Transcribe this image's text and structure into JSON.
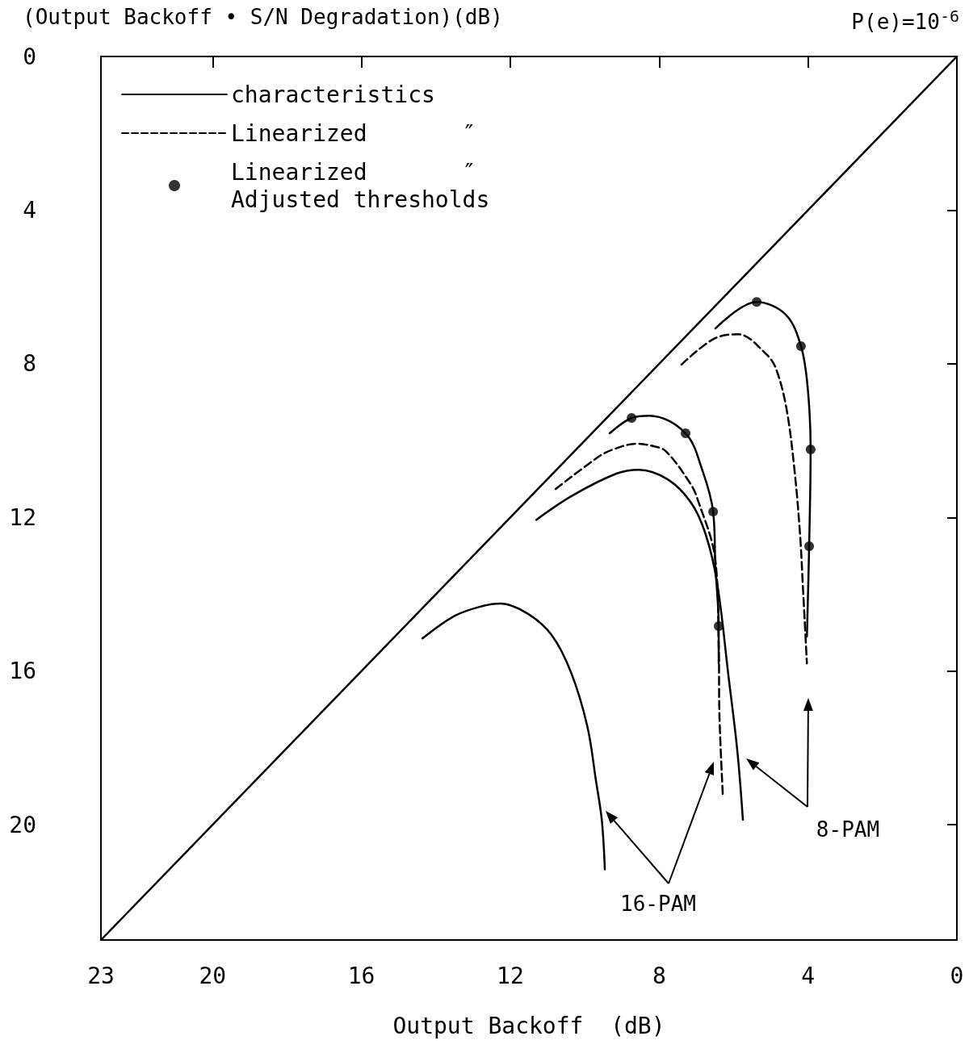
{
  "chart_data": {
    "type": "line",
    "ylabel": "(Output Backoff • S/N Degradation)(dB)",
    "xlabel": "Output Backoff  (dB)",
    "xlim": [
      23,
      0
    ],
    "xticks": [
      23,
      20,
      16,
      12,
      8,
      4,
      0
    ],
    "ylim": [
      23,
      0
    ],
    "yticks": [
      0,
      4,
      8,
      12,
      16,
      20
    ],
    "legend": "top left",
    "series": [
      {
        "x": [
          23,
          0
        ],
        "values": [
          23,
          0
        ],
        "color": "#000000",
        "line_style": "solid"
      },
      {
        "name": "characteristics",
        "color": "#000000",
        "line_style": "solid",
        "x": [
          14.36,
          13.49,
          12.76,
          12.26,
          11.54,
          10.89,
          10.37,
          9.93,
          9.7,
          9.54,
          9.46
        ],
        "values": [
          15.15,
          14.56,
          14.31,
          14.24,
          14.5,
          15.06,
          16.03,
          17.44,
          18.84,
          19.89,
          21.16
        ]
      },
      {
        "color": "#000000",
        "line_style": "solid",
        "x": [
          11.3,
          10.33,
          9.15,
          8.55,
          7.77,
          7.14,
          6.75,
          6.44,
          6.14,
          5.9,
          5.75
        ],
        "values": [
          12.06,
          11.43,
          10.86,
          10.76,
          11.01,
          11.62,
          12.44,
          13.72,
          16.11,
          18.07,
          19.87
        ]
      },
      {
        "name": "Linearized       ″",
        "color": "#000000",
        "line_style": "dashed",
        "x": [
          10.78,
          9.63,
          9.24,
          8.61,
          8.22,
          7.83,
          7.18,
          6.98,
          6.49,
          6.4,
          6.38,
          6.29
        ],
        "values": [
          11.26,
          10.42,
          10.23,
          10.08,
          10.13,
          10.27,
          11.09,
          11.49,
          13.11,
          15.36,
          17.16,
          19.22
        ]
      },
      {
        "color": "#000000",
        "line_style": "dashed",
        "x": [
          7.4,
          6.53,
          5.88,
          5.12,
          4.86,
          4.58,
          4.36,
          4.21,
          4.14,
          4.03
        ],
        "values": [
          8.02,
          7.35,
          7.23,
          7.75,
          8.13,
          9.16,
          10.8,
          12.5,
          13.76,
          15.8
        ]
      },
      {
        "color": "#000000",
        "line_style": "solid",
        "x": [
          9.33,
          8.74,
          8.26,
          7.29,
          6.83,
          6.55,
          6.49,
          6.4,
          6.4
        ],
        "values": [
          9.81,
          9.41,
          9.35,
          9.81,
          10.8,
          11.85,
          13.26,
          14.83,
          15.8
        ]
      },
      {
        "color": "#000000",
        "line_style": "solid",
        "x": [
          6.49,
          5.38,
          4.6,
          4.19,
          4.01,
          3.93,
          3.97,
          4.03
        ],
        "values": [
          7.08,
          6.39,
          6.72,
          7.54,
          8.61,
          10.23,
          12.75,
          15.1
        ]
      },
      {
        "name": "Linearized       ″\nAdjusted thresholds",
        "type": "scatter",
        "marker": "circle",
        "color": "#000000",
        "x": [
          8.74,
          7.29,
          6.55,
          6.4,
          5.38,
          4.19,
          3.93,
          3.97
        ],
        "values": [
          9.41,
          9.81,
          11.85,
          14.83,
          6.39,
          7.54,
          10.23,
          12.75
        ]
      }
    ],
    "annotations": [
      "P(e)=10$^{-6}$",
      "16-PAM",
      "8-PAM"
    ]
  }
}
